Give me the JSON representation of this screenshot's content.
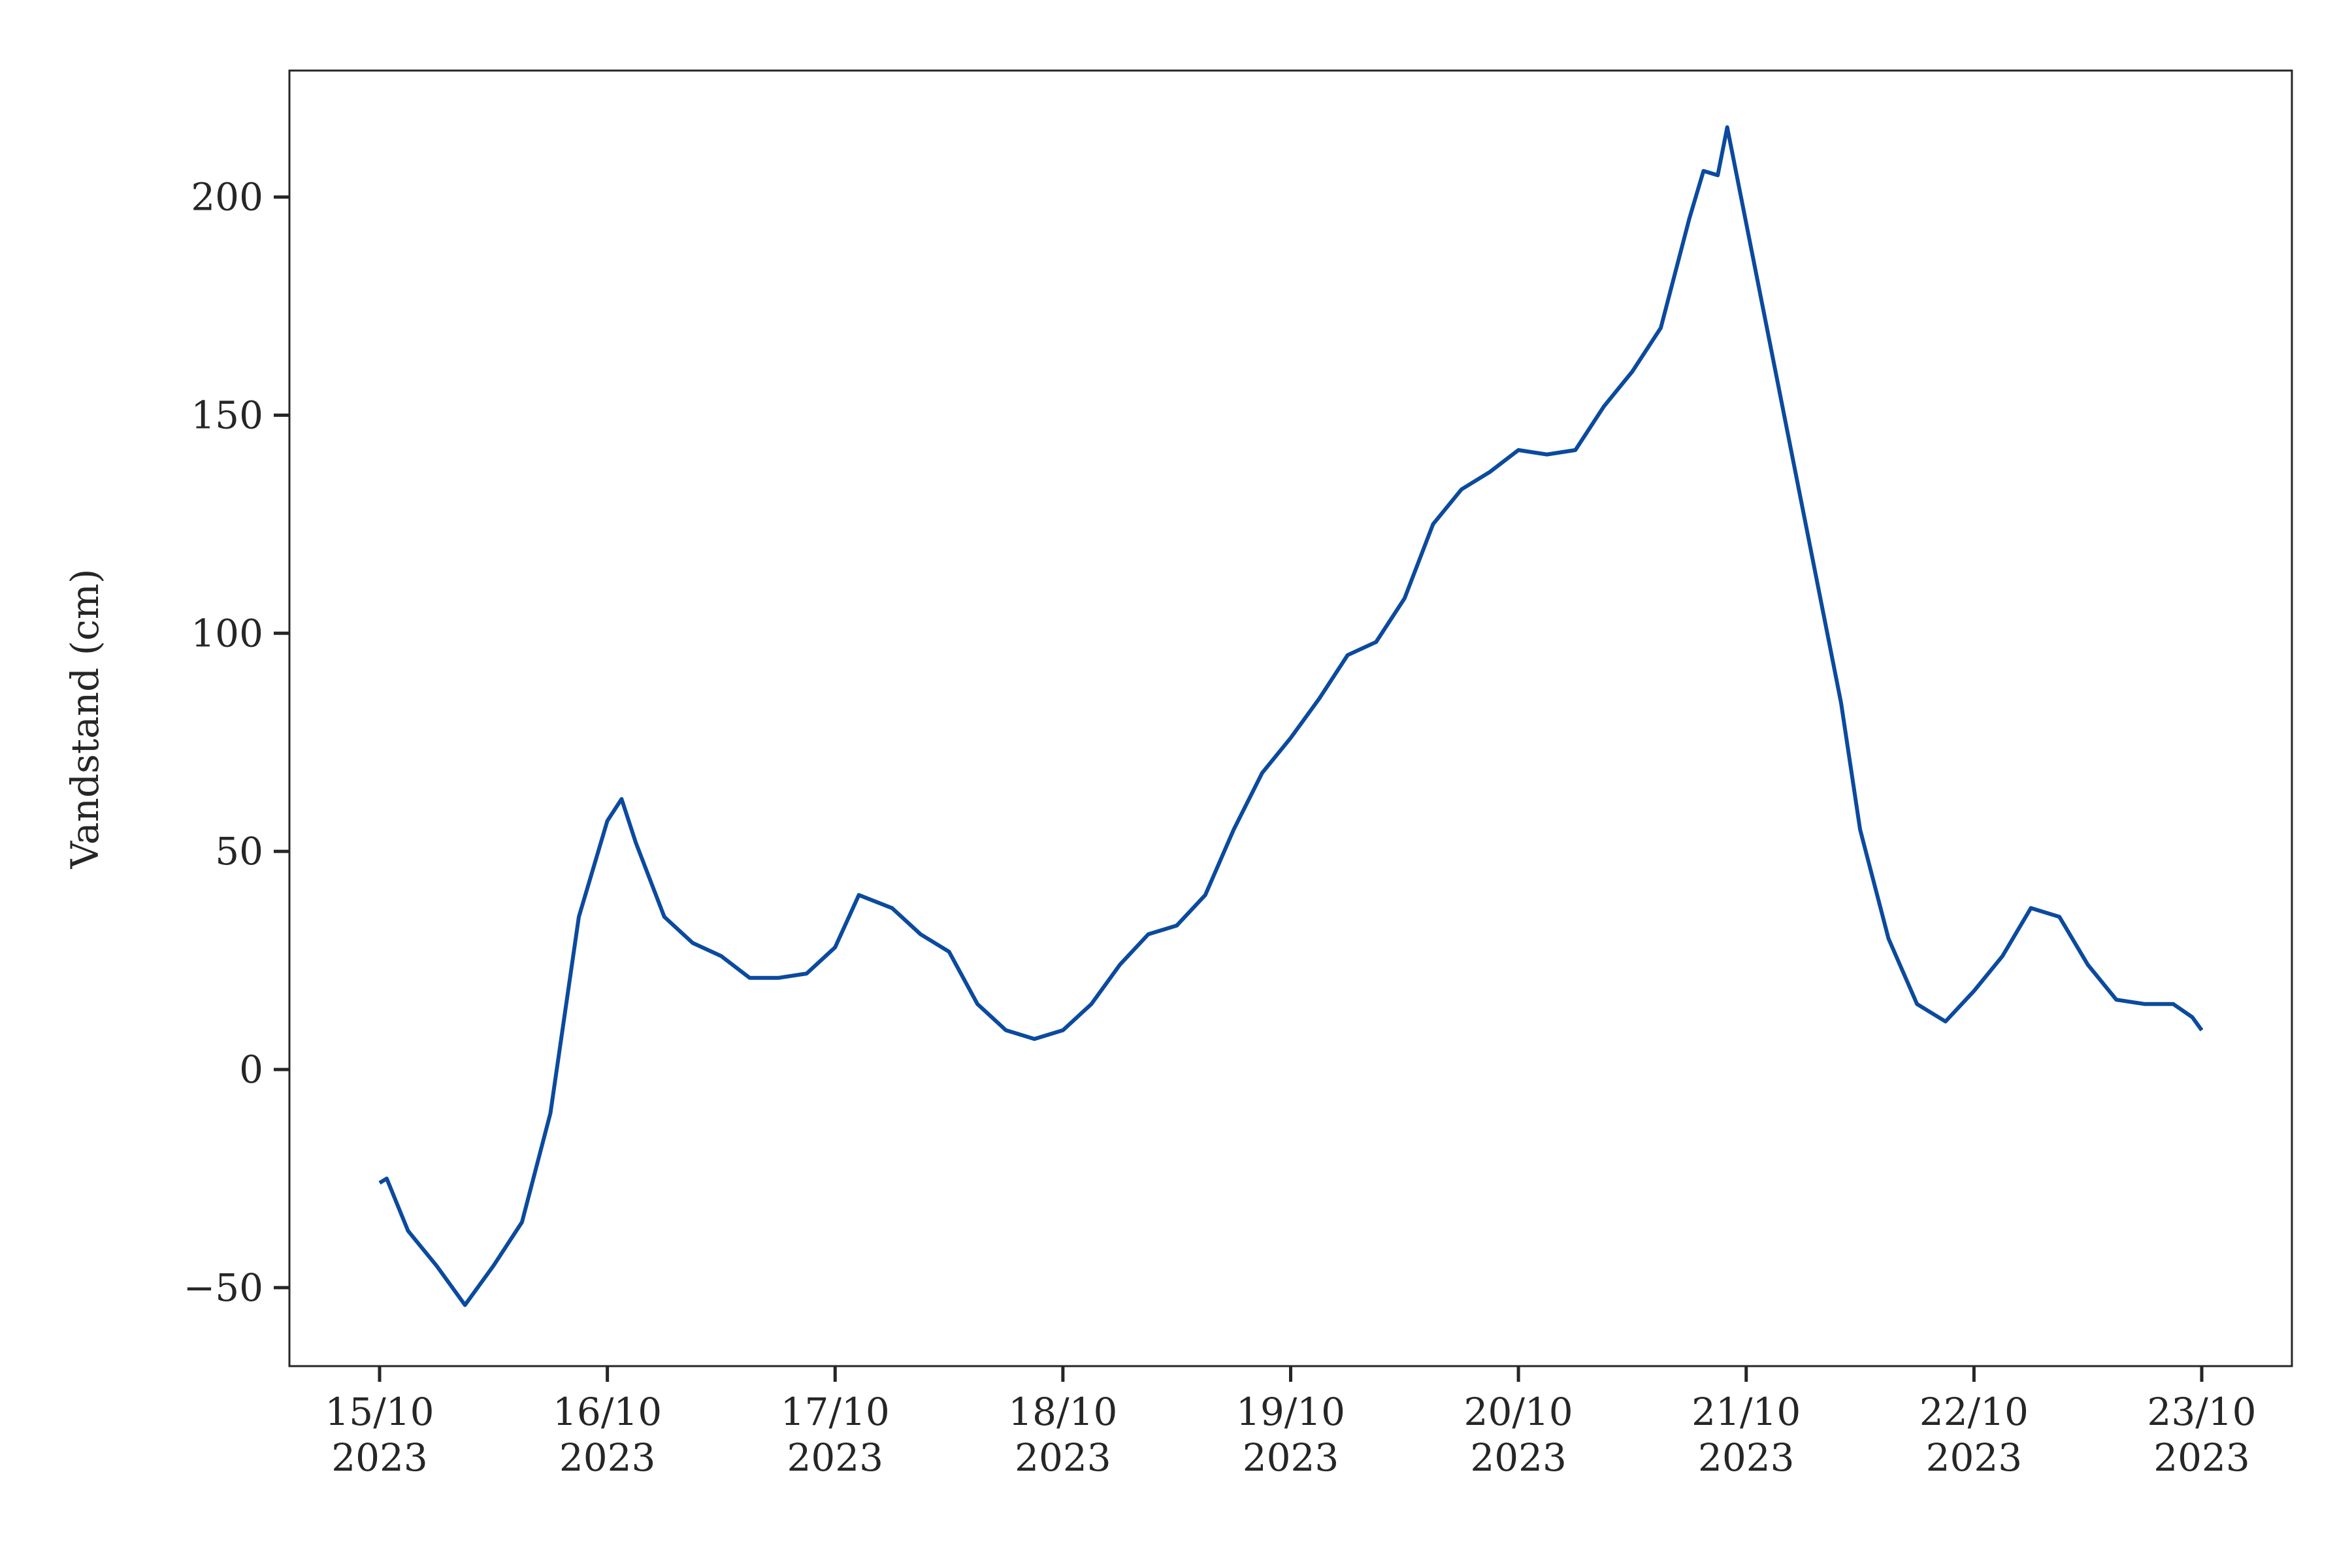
{
  "chart_data": {
    "type": "line",
    "y_label": "Vandstand (cm)",
    "x": [
      "2023-10-15T00:00",
      "2023-10-15T00:45",
      "2023-10-15T03:00",
      "2023-10-15T06:00",
      "2023-10-15T09:00",
      "2023-10-15T12:00",
      "2023-10-15T15:00",
      "2023-10-15T18:00",
      "2023-10-15T21:00",
      "2023-10-16T00:00",
      "2023-10-16T01:30",
      "2023-10-16T03:00",
      "2023-10-16T06:00",
      "2023-10-16T09:00",
      "2023-10-16T12:00",
      "2023-10-16T15:00",
      "2023-10-16T18:00",
      "2023-10-16T21:00",
      "2023-10-17T00:00",
      "2023-10-17T02:30",
      "2023-10-17T06:00",
      "2023-10-17T09:00",
      "2023-10-17T12:00",
      "2023-10-17T15:00",
      "2023-10-17T18:00",
      "2023-10-17T21:00",
      "2023-10-18T00:00",
      "2023-10-18T03:00",
      "2023-10-18T06:00",
      "2023-10-18T09:00",
      "2023-10-18T12:00",
      "2023-10-18T15:00",
      "2023-10-18T18:00",
      "2023-10-18T21:00",
      "2023-10-19T00:00",
      "2023-10-19T03:00",
      "2023-10-19T06:00",
      "2023-10-19T09:00",
      "2023-10-19T12:00",
      "2023-10-19T15:00",
      "2023-10-19T18:00",
      "2023-10-19T21:00",
      "2023-10-20T00:00",
      "2023-10-20T03:00",
      "2023-10-20T06:00",
      "2023-10-20T09:00",
      "2023-10-20T12:00",
      "2023-10-20T15:00",
      "2023-10-20T18:00",
      "2023-10-20T19:30",
      "2023-10-20T21:00",
      "2023-10-20T22:00",
      "2023-10-21T10:00",
      "2023-10-21T12:00",
      "2023-10-21T15:00",
      "2023-10-21T18:00",
      "2023-10-21T21:00",
      "2023-10-22T00:00",
      "2023-10-22T03:00",
      "2023-10-22T06:00",
      "2023-10-22T09:00",
      "2023-10-22T12:00",
      "2023-10-22T15:00",
      "2023-10-22T18:00",
      "2023-10-22T21:00",
      "2023-10-22T23:00",
      "2023-10-23T00:00"
    ],
    "series": [
      {
        "name": "Vandstand",
        "color": "#0b4a9e",
        "values": [
          -26,
          -25,
          -37,
          -45,
          -54,
          -45,
          -35,
          -10,
          35,
          57,
          62,
          52,
          35,
          29,
          26,
          21,
          21,
          22,
          28,
          40,
          37,
          31,
          27,
          15,
          9,
          7,
          9,
          15,
          24,
          31,
          33,
          40,
          55,
          68,
          76,
          85,
          95,
          98,
          108,
          125,
          133,
          137,
          142,
          141,
          142,
          152,
          160,
          170,
          195,
          206,
          205,
          216,
          84,
          55,
          30,
          15,
          11,
          18,
          26,
          37,
          35,
          24,
          16,
          15,
          15,
          12,
          9
        ]
      }
    ],
    "xlim": [
      "2023-10-14T14:30",
      "2023-10-23T09:30"
    ],
    "xticks": [
      {
        "value": "2023-10-15",
        "label": "15/10\n2023"
      },
      {
        "value": "2023-10-16",
        "label": "16/10\n2023"
      },
      {
        "value": "2023-10-17",
        "label": "17/10\n2023"
      },
      {
        "value": "2023-10-18",
        "label": "18/10\n2023"
      },
      {
        "value": "2023-10-19",
        "label": "19/10\n2023"
      },
      {
        "value": "2023-10-20",
        "label": "20/10\n2023"
      },
      {
        "value": "2023-10-21",
        "label": "21/10\n2023"
      },
      {
        "value": "2023-10-22",
        "label": "22/10\n2023"
      },
      {
        "value": "2023-10-23",
        "label": "23/10\n2023"
      }
    ],
    "ylim": [
      -68,
      229
    ],
    "yticks": [
      {
        "value": -50,
        "label": "−50"
      },
      0,
      50,
      100,
      150,
      200
    ],
    "grid": false
  }
}
